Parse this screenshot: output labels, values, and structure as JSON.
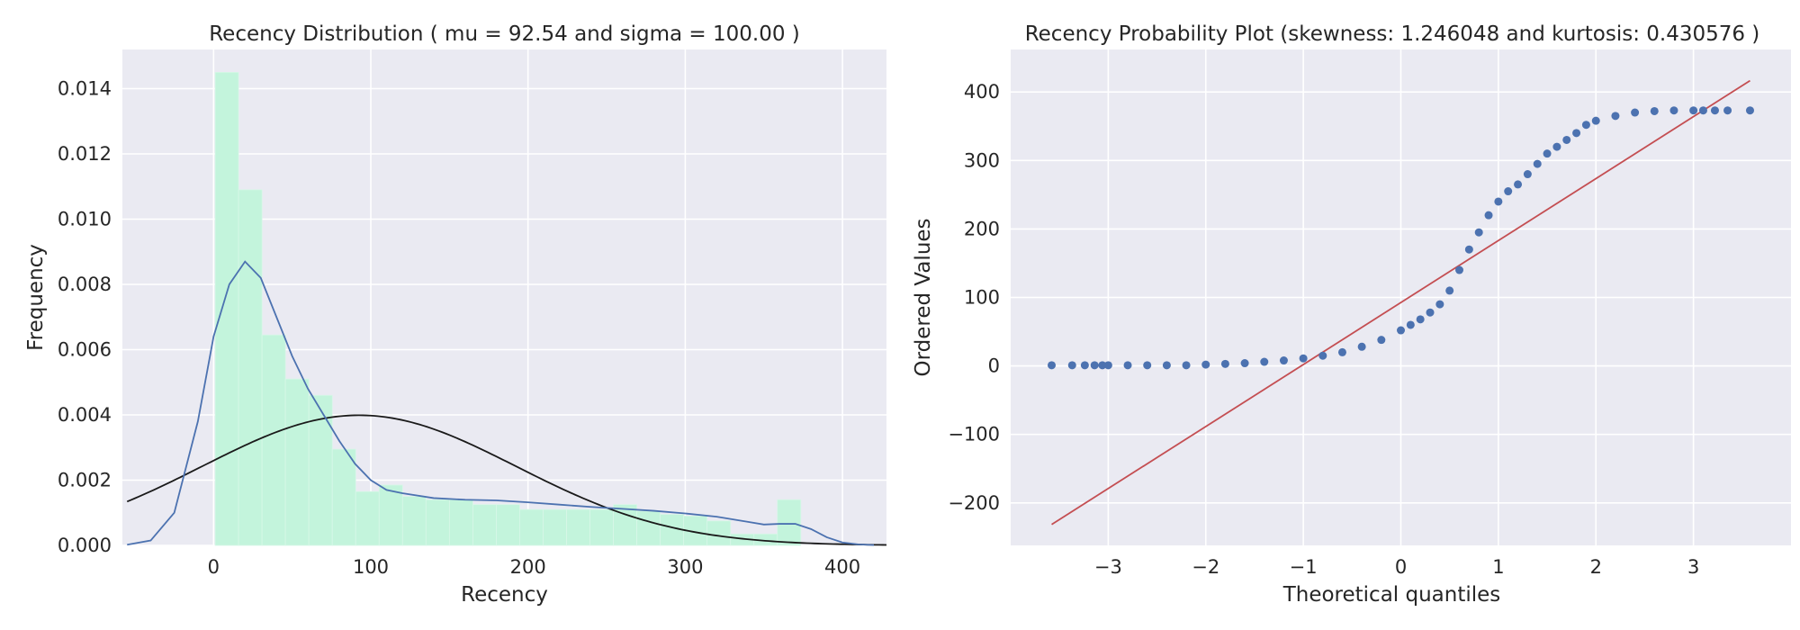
{
  "chart_data": [
    {
      "type": "histogram",
      "title": "Recency Distribution ( mu = 92.54 and sigma = 100.00 )",
      "xlabel": "Recency",
      "ylabel": "Frequency",
      "xlim": [
        -58,
        428
      ],
      "ylim": [
        0,
        0.0152
      ],
      "xticks": [
        0,
        100,
        200,
        300,
        400
      ],
      "yticks": [
        0.0,
        0.002,
        0.004,
        0.006,
        0.008,
        0.01,
        0.012,
        0.014
      ],
      "ytick_labels": [
        "0.000",
        "0.002",
        "0.004",
        "0.006",
        "0.008",
        "0.010",
        "0.012",
        "0.014"
      ],
      "grid": true,
      "colors": {
        "background": "#eaeaf2",
        "grid": "#ffffff",
        "bars": "#c3f4dc",
        "kde": "#4c72b0",
        "normal_fit": "#1a1a1a"
      },
      "bins": {
        "edges": [
          1,
          15.9,
          30.8,
          45.7,
          60.6,
          75.5,
          90.4,
          105.3,
          120.2,
          135.1,
          150,
          164.9,
          179.8,
          194.7,
          209.6,
          224.5,
          239.4,
          254.3,
          269.2,
          284.1,
          299,
          313.9,
          328.8,
          343.7,
          358.6,
          373.5
        ],
        "heights": [
          0.0145,
          0.0109,
          0.00645,
          0.0051,
          0.0046,
          0.00295,
          0.00165,
          0.00185,
          0.0015,
          0.0014,
          0.0014,
          0.00125,
          0.00125,
          0.0011,
          0.0011,
          0.0011,
          0.0011,
          0.00125,
          0.00105,
          0.00095,
          0.0009,
          0.00075,
          0.00035,
          0.00035,
          0.0014
        ]
      },
      "kde": {
        "x": [
          -55,
          -40,
          -25,
          -10,
          0,
          10,
          20,
          30,
          40,
          50,
          60,
          70,
          80,
          90,
          100,
          110,
          120,
          140,
          160,
          180,
          200,
          220,
          240,
          260,
          280,
          300,
          320,
          340,
          350,
          360,
          370,
          380,
          390,
          400,
          410,
          420
        ],
        "y": [
          2e-05,
          0.00015,
          0.001,
          0.0038,
          0.0064,
          0.008,
          0.0087,
          0.0082,
          0.007,
          0.0058,
          0.0048,
          0.004,
          0.0032,
          0.0025,
          0.002,
          0.0017,
          0.0016,
          0.00145,
          0.0014,
          0.00138,
          0.00132,
          0.00125,
          0.00118,
          0.00112,
          0.00106,
          0.00098,
          0.00088,
          0.00072,
          0.00064,
          0.00066,
          0.00066,
          0.0005,
          0.00025,
          9e-05,
          3e-05,
          1e-05
        ]
      },
      "normal_fit": {
        "mu": 92.54,
        "sigma": 100.0,
        "x_range": [
          -55,
          428
        ]
      }
    },
    {
      "type": "scatter",
      "title": "Recency Probability Plot (skewness: 1.246048 and kurtosis: 0.430576 )",
      "xlabel": "Theoretical quantiles",
      "ylabel": "Ordered Values",
      "xlim": [
        -4.0,
        4.0
      ],
      "ylim": [
        -262,
        462
      ],
      "xticks": [
        -3,
        -2,
        -1,
        0,
        1,
        2,
        3
      ],
      "xtick_labels": [
        "−3",
        "−2",
        "−1",
        "0",
        "1",
        "2",
        "3"
      ],
      "yticks": [
        -200,
        -100,
        0,
        100,
        200,
        300,
        400
      ],
      "ytick_labels": [
        "−200",
        "−100",
        "0",
        "100",
        "200",
        "300",
        "400"
      ],
      "grid": true,
      "colors": {
        "background": "#eaeaf2",
        "grid": "#ffffff",
        "points": "#4c72b0",
        "fit_line": "#c44e52"
      },
      "points": {
        "x": [
          -3.58,
          -3.37,
          -3.24,
          -3.14,
          -3.06,
          -3.0,
          -2.8,
          -2.6,
          -2.4,
          -2.2,
          -2.0,
          -1.8,
          -1.6,
          -1.4,
          -1.2,
          -1.0,
          -0.8,
          -0.6,
          -0.4,
          -0.2,
          0.0,
          0.1,
          0.2,
          0.3,
          0.4,
          0.5,
          0.6,
          0.7,
          0.8,
          0.9,
          1.0,
          1.1,
          1.2,
          1.3,
          1.4,
          1.5,
          1.6,
          1.7,
          1.8,
          1.9,
          2.0,
          2.2,
          2.4,
          2.6,
          2.8,
          3.0,
          3.1,
          3.22,
          3.35,
          3.58
        ],
        "y": [
          1,
          1,
          1,
          1,
          1,
          1,
          1,
          1,
          1,
          1,
          2,
          3,
          4,
          6,
          8,
          11,
          15,
          20,
          28,
          38,
          52,
          60,
          68,
          78,
          90,
          110,
          140,
          170,
          195,
          220,
          240,
          255,
          265,
          280,
          295,
          310,
          320,
          330,
          340,
          352,
          358,
          365,
          370,
          372,
          373,
          373,
          373,
          373,
          373,
          373
        ]
      },
      "fit_line": {
        "slope": 90.5,
        "intercept": 92.54,
        "x_range": [
          -3.58,
          3.58
        ]
      }
    }
  ]
}
